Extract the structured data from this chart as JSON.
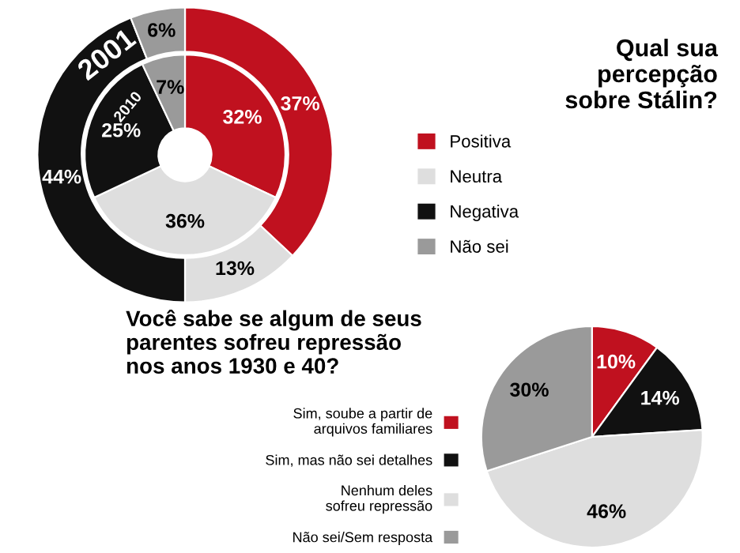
{
  "chart_data": [
    {
      "type": "donut",
      "title": "Qual sua\npercepção\nsobre Stálin?",
      "categories": [
        "Positiva",
        "Neutra",
        "Negativa",
        "Não sei"
      ],
      "colors": [
        "#c0111f",
        "#dedede",
        "#111111",
        "#9a9a9a"
      ],
      "legend": "right",
      "series": [
        {
          "name": "2001",
          "values": [
            37,
            13,
            44,
            6
          ],
          "value_labels": [
            "37%",
            "13%",
            "44%",
            "6%"
          ]
        },
        {
          "name": "2010",
          "values": [
            32,
            36,
            25,
            7
          ],
          "value_labels": [
            "32%",
            "36%",
            "25%",
            "7%"
          ]
        }
      ]
    },
    {
      "type": "pie",
      "title": "Você sabe se algum de seus\nparentes sofreu repressão\nnos anos 1930 e 40?",
      "categories": [
        "Sim, soube a partir de\narquivos familiares",
        "Sim, mas não sei detalhes",
        "Nenhum deles\nsofreu repressão",
        "Não sei/Sem resposta"
      ],
      "colors": [
        "#c0111f",
        "#111111",
        "#dedede",
        "#9a9a9a"
      ],
      "values": [
        10,
        14,
        46,
        30
      ],
      "value_labels": [
        "10%",
        "14%",
        "46%",
        "30%"
      ],
      "legend": "left"
    }
  ]
}
